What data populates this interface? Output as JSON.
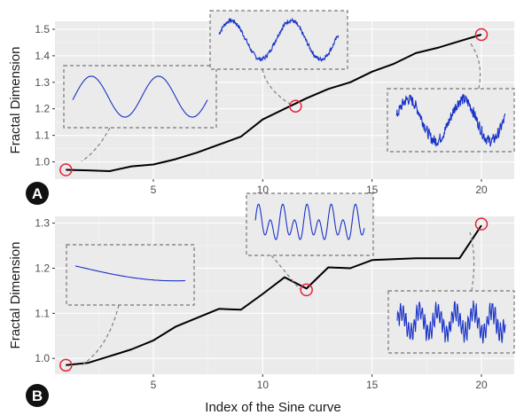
{
  "chart_data": [
    {
      "type": "line",
      "panel": "A",
      "ylabel": "Fractal Dimension",
      "xlabel": "",
      "xlim": [
        0.5,
        21.5
      ],
      "ylim": [
        0.935,
        1.53
      ],
      "xticks": [
        5,
        10,
        15,
        20
      ],
      "yticks": [
        1.0,
        1.1,
        1.2,
        1.3,
        1.4,
        1.5
      ],
      "ytick_labels": [
        "1.0",
        "1.1",
        "1.2",
        "1.3",
        "1.4",
        "1.5"
      ],
      "x": [
        1,
        2,
        3,
        4,
        5,
        6,
        7,
        8,
        9,
        10,
        11,
        12,
        13,
        14,
        15,
        16,
        17,
        18,
        19,
        20
      ],
      "y": [
        0.97,
        0.968,
        0.965,
        0.983,
        0.99,
        1.01,
        1.035,
        1.065,
        1.095,
        1.16,
        1.2,
        1.24,
        1.275,
        1.3,
        1.34,
        1.37,
        1.41,
        1.43,
        1.455,
        1.48
      ],
      "highlighted": [
        {
          "x": 1,
          "y": 0.97,
          "inset": "smooth sine wave"
        },
        {
          "x": 11.5,
          "y": 1.21,
          "inset": "slightly noisy sine wave"
        },
        {
          "x": 20,
          "y": 1.48,
          "inset": "noisy sine wave"
        }
      ],
      "grid": true,
      "line_color": "#000000",
      "marker_color": "#e8203a",
      "inset_line_color": "#1a33c8",
      "panel_bg": "#ebebeb"
    },
    {
      "type": "line",
      "panel": "B",
      "ylabel": "Fractal Dimension",
      "xlabel": "Index of the Sine curve",
      "xlim": [
        0.5,
        21.5
      ],
      "ylim": [
        0.965,
        1.315
      ],
      "xticks": [
        5,
        10,
        15,
        20
      ],
      "yticks": [
        1.0,
        1.1,
        1.2,
        1.3
      ],
      "ytick_labels": [
        "1.0",
        "1.1",
        "1.2",
        "1.3"
      ],
      "x": [
        1,
        2,
        3,
        4,
        5,
        6,
        7,
        8,
        9,
        10,
        11,
        12,
        13,
        14,
        15,
        16,
        17,
        18,
        19,
        20
      ],
      "y": [
        0.985,
        0.99,
        1.005,
        1.02,
        1.04,
        1.07,
        1.09,
        1.11,
        1.108,
        1.143,
        1.18,
        1.155,
        1.202,
        1.2,
        1.218,
        1.22,
        1.222,
        1.222,
        1.222,
        1.295
      ],
      "highlighted": [
        {
          "x": 1,
          "y": 0.985,
          "inset": "single slow sine"
        },
        {
          "x": 12,
          "y": 1.152,
          "inset": "multi-frequency sine"
        },
        {
          "x": 20,
          "y": 1.298,
          "inset": "high-frequency noisy sine"
        }
      ],
      "grid": true,
      "line_color": "#000000",
      "marker_color": "#e8203a",
      "inset_line_color": "#1a33c8",
      "panel_bg": "#ebebeb"
    }
  ]
}
